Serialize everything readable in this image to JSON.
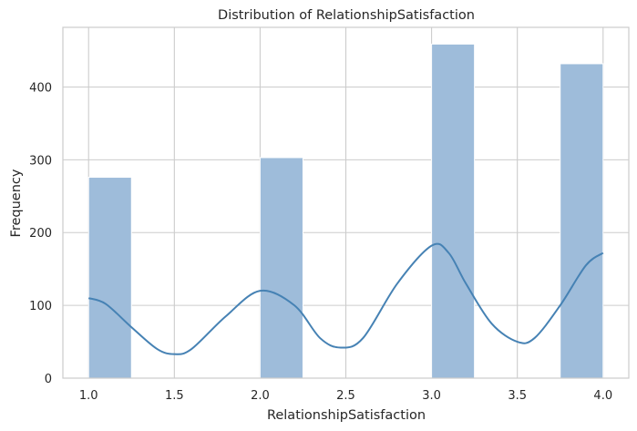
{
  "chart_data": {
    "type": "bar",
    "title": "Distribution of RelationshipSatisfaction",
    "xlabel": "RelationshipSatisfaction",
    "ylabel": "Frequency",
    "xlim": [
      0.85,
      4.15
    ],
    "ylim": [
      0,
      482
    ],
    "x_ticks": [
      "1.0",
      "1.5",
      "2.0",
      "2.5",
      "3.0",
      "3.5",
      "4.0"
    ],
    "y_ticks": [
      "0",
      "100",
      "200",
      "300",
      "400"
    ],
    "grid": true,
    "bins": [
      {
        "x0": 1.0,
        "x1": 1.25,
        "value": 276
      },
      {
        "x0": 1.25,
        "x1": 1.5,
        "value": 0
      },
      {
        "x0": 1.5,
        "x1": 1.75,
        "value": 0
      },
      {
        "x0": 1.75,
        "x1": 2.0,
        "value": 0
      },
      {
        "x0": 2.0,
        "x1": 2.25,
        "value": 303
      },
      {
        "x0": 2.25,
        "x1": 2.5,
        "value": 0
      },
      {
        "x0": 2.5,
        "x1": 2.75,
        "value": 0
      },
      {
        "x0": 2.75,
        "x1": 3.0,
        "value": 0
      },
      {
        "x0": 3.0,
        "x1": 3.25,
        "value": 459
      },
      {
        "x0": 3.25,
        "x1": 3.5,
        "value": 0
      },
      {
        "x0": 3.5,
        "x1": 3.75,
        "value": 0
      },
      {
        "x0": 3.75,
        "x1": 4.0,
        "value": 432
      }
    ],
    "kde_curve": {
      "x": [
        1.0,
        1.1,
        1.25,
        1.4,
        1.5,
        1.6,
        1.8,
        2.0,
        2.2,
        2.35,
        2.47,
        2.6,
        2.8,
        3.0,
        3.1,
        3.2,
        3.35,
        3.5,
        3.6,
        3.75,
        3.9,
        4.0
      ],
      "y": [
        110,
        102,
        70,
        40,
        33,
        40,
        85,
        120,
        100,
        55,
        42,
        55,
        130,
        182,
        172,
        130,
        75,
        50,
        55,
        100,
        155,
        172
      ]
    },
    "colors": {
      "bar_fill": "#9ebcda",
      "bar_stroke": "#ffffff",
      "kde_line": "#4682b4",
      "grid": "#cccccc",
      "spine": "#cccccc"
    }
  }
}
